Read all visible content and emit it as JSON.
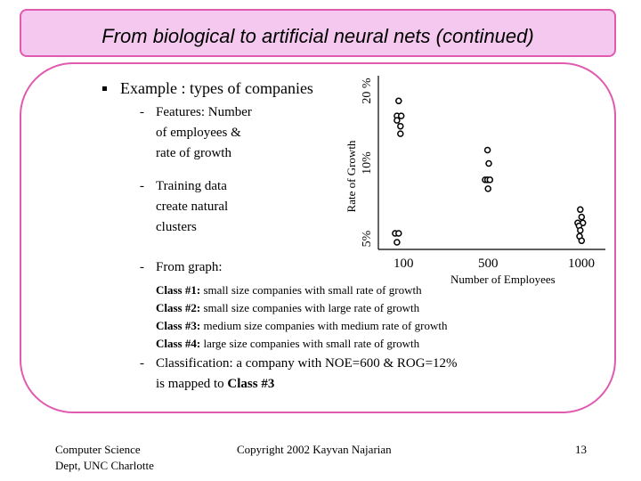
{
  "slide": {
    "title": "From biological to artificial neural nets (continued)",
    "example_heading": "Example : types of companies",
    "dash": "-",
    "features_lines": [
      "Features: Number",
      "of employees &",
      "rate of growth"
    ],
    "training_lines": [
      "Training data",
      "create natural",
      "clusters"
    ],
    "from_graph": "From graph:",
    "classes": [
      {
        "label": "Class #1:",
        "text": " small size companies with small rate of growth"
      },
      {
        "label": "Class #2:",
        "text": " small size companies with large rate of growth"
      },
      {
        "label": "Class #3:",
        "text": " medium size companies with medium rate of growth"
      },
      {
        "label": "Class #4:",
        "text": " large size companies with small rate of growth"
      }
    ],
    "classification_line1": "Classification: a company with NOE=600 & ROG=12%",
    "classification_line2_prefix": "is mapped to ",
    "classification_line2_class": "Class #3"
  },
  "chart_data": {
    "type": "scatter",
    "xlabel": "Number of Employees",
    "ylabel": "Rate of Growth",
    "x_ticks": [
      "100",
      "500",
      "1000"
    ],
    "y_ticks": [
      "5%",
      "10%",
      "20 %"
    ],
    "clusters": [
      {
        "name": "Class #1",
        "points": [
          [
            0.35,
            0.06
          ],
          [
            0.55,
            0.06
          ],
          [
            0.45,
            0.0
          ]
        ]
      },
      {
        "name": "Class #2",
        "points": [
          [
            0.55,
            0.95
          ],
          [
            0.45,
            0.85
          ],
          [
            0.7,
            0.85
          ],
          [
            0.45,
            0.82
          ],
          [
            0.65,
            0.78
          ],
          [
            0.65,
            0.73
          ]
        ]
      },
      {
        "name": "Class #3",
        "points": [
          [
            0.5,
            0.62
          ],
          [
            0.55,
            0.53
          ],
          [
            0.4,
            0.42
          ],
          [
            0.5,
            0.42
          ],
          [
            0.6,
            0.42
          ],
          [
            0.52,
            0.36
          ]
        ]
      },
      {
        "name": "Class #4",
        "points": [
          [
            0.45,
            0.22
          ],
          [
            0.5,
            0.17
          ],
          [
            0.35,
            0.13
          ],
          [
            0.55,
            0.13
          ],
          [
            0.4,
            0.11
          ],
          [
            0.45,
            0.08
          ],
          [
            0.42,
            0.04
          ],
          [
            0.5,
            0.01
          ]
        ]
      }
    ],
    "cluster_x_ranges": [
      [
        50,
        130
      ],
      [
        50,
        130
      ],
      [
        450,
        560
      ],
      [
        880,
        1000
      ]
    ],
    "axis_ranges": {
      "x": [
        0,
        1050
      ],
      "y": [
        0,
        1
      ]
    },
    "marker_style": "open circles",
    "grid": false
  },
  "footer": {
    "dept_line1": "Computer Science",
    "dept_line2": "Dept, UNC Charlotte",
    "copyright": "Copyright 2002 Kayvan Najarian",
    "page_number": "13"
  },
  "colors": {
    "title_bg": "#f5c8ef",
    "border": "#e05bb0"
  }
}
